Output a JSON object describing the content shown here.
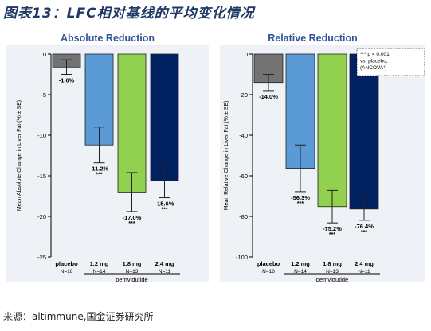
{
  "figure_title": "图表13：LFC相对基线的平均变化情况",
  "source": "来源：altimmune,国金证券研究所",
  "chart_data": [
    {
      "type": "bar",
      "title": "Absolute Reduction",
      "ylabel": "Mean Absolute Change in Liver Fat (% ± SE)",
      "ylim": [
        -25,
        0
      ],
      "yticks": [
        0,
        -5,
        -10,
        -15,
        -20,
        -25
      ],
      "ytick_labels": [
        "0",
        "-5",
        "-10",
        "-15",
        "-20",
        "-25"
      ],
      "categories": [
        "placebo",
        "1.2 mg",
        "1.8 mg",
        "2.4 mg"
      ],
      "n_labels": [
        "N=18",
        "N=14",
        "N=13",
        "N=11"
      ],
      "values": [
        -1.6,
        -11.2,
        -17.0,
        -15.6
      ],
      "errors": [
        0.9,
        2.2,
        2.4,
        2.1
      ],
      "value_labels": [
        "-1.6%",
        "-11.2%",
        "-17.0%",
        "-15.6%"
      ],
      "significance": [
        "",
        "***",
        "***",
        "***"
      ],
      "colors": [
        "#737373",
        "#5b9bd5",
        "#92d050",
        "#002060"
      ],
      "group_label": "pemvidutide"
    },
    {
      "type": "bar",
      "title": "Relative Reduction",
      "ylabel": "Mean Relative Change in Liver Fat (% ± SE)",
      "ylim": [
        -100,
        0
      ],
      "yticks": [
        0,
        -20,
        -40,
        -60,
        -80,
        -100
      ],
      "ytick_labels": [
        "0",
        "-20",
        "-40",
        "-60",
        "-80",
        "-100"
      ],
      "categories": [
        "placebo",
        "1.2 mg",
        "1.8 mg",
        "2.4 mg"
      ],
      "n_labels": [
        "N=18",
        "N=14",
        "N=13",
        "N=11"
      ],
      "values": [
        -14.0,
        -56.3,
        -75.2,
        -76.4
      ],
      "errors": [
        4.0,
        11.5,
        8.0,
        5.5
      ],
      "value_labels": [
        "-14.0%",
        "-56.3%",
        "-75.2%",
        "-76.4%"
      ],
      "significance": [
        "",
        "***",
        "***",
        "***"
      ],
      "colors": [
        "#737373",
        "#5b9bd5",
        "#92d050",
        "#002060"
      ],
      "group_label": "pemvidutide",
      "legend": {
        "placement": "top-right",
        "lines": [
          "*** p < 0.001",
          "vs. placebo,",
          "(ANCOVA¹)"
        ]
      }
    }
  ]
}
